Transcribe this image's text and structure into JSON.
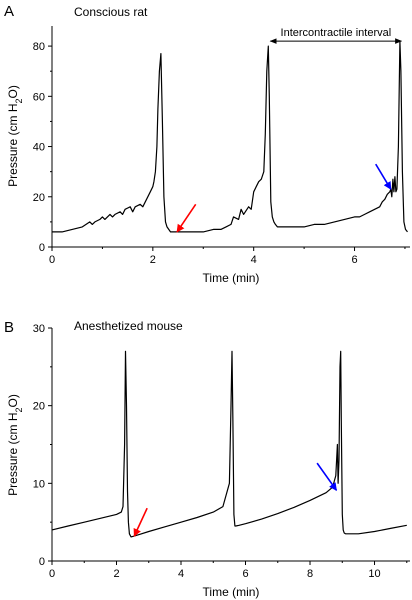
{
  "chart_data": [
    {
      "type": "line",
      "panel_label": "A",
      "title": "Conscious rat",
      "xlabel": "Time (min)",
      "ylabel": "Pressure (cm H2O)",
      "xlim": [
        0,
        7.1
      ],
      "ylim": [
        0,
        88
      ],
      "xticks": [
        0,
        2,
        4,
        6
      ],
      "yticks": [
        0,
        20,
        40,
        60,
        80
      ],
      "grid": false,
      "annotations": [
        {
          "text": "Intercontractile interval",
          "x1": 4.33,
          "x2": 6.93,
          "y": 82
        }
      ],
      "arrows": [
        {
          "color": "#ff0000",
          "tip": [
            2.48,
            6
          ],
          "tail": [
            2.85,
            17
          ]
        },
        {
          "color": "#0000ff",
          "tip": [
            6.72,
            23
          ],
          "tail": [
            6.42,
            33
          ]
        }
      ],
      "series": [
        {
          "x": [
            0,
            0.2,
            0.4,
            0.6,
            0.75,
            0.8,
            0.85,
            0.95,
            1.0,
            1.05,
            1.15,
            1.2,
            1.25,
            1.35,
            1.4,
            1.45,
            1.55,
            1.6,
            1.65,
            1.75,
            1.8,
            1.85,
            1.9,
            1.95,
            2.0,
            2.02,
            2.05,
            2.08,
            2.1,
            2.13,
            2.16,
            2.19,
            2.22,
            2.25,
            2.28,
            2.35,
            2.45,
            2.6,
            2.8,
            3.0,
            3.2,
            3.35,
            3.45,
            3.55,
            3.6,
            3.7,
            3.75,
            3.8,
            3.9,
            3.95,
            4.0,
            4.05,
            4.1,
            4.15,
            4.2,
            4.23,
            4.26,
            4.29,
            4.31,
            4.34,
            4.37,
            4.4,
            4.43,
            4.47,
            4.52,
            4.6,
            4.7,
            4.85,
            5.0,
            5.2,
            5.4,
            5.6,
            5.8,
            6.0,
            6.1,
            6.2,
            6.3,
            6.4,
            6.5,
            6.55,
            6.6,
            6.65,
            6.7,
            6.72,
            6.74,
            6.76,
            6.78,
            6.8,
            6.82,
            6.84,
            6.87,
            6.9,
            6.92,
            6.95,
            6.98,
            7.01,
            7.05
          ],
          "y": [
            6,
            6,
            7,
            8,
            10,
            9,
            10,
            11,
            12,
            11,
            13,
            12,
            13,
            14,
            13,
            15,
            16,
            14,
            16,
            17,
            16,
            18,
            20,
            22,
            24,
            26,
            30,
            40,
            55,
            70,
            77,
            50,
            20,
            10,
            8,
            6,
            6,
            6,
            6,
            6,
            7,
            7,
            8,
            9,
            12,
            11,
            15,
            13,
            16,
            15,
            22,
            24,
            26,
            27,
            30,
            45,
            70,
            80,
            60,
            18,
            12,
            10,
            9,
            8,
            8,
            8,
            8,
            8,
            8,
            9,
            9,
            10,
            11,
            12,
            12,
            13,
            14,
            15,
            16,
            18,
            19,
            21,
            22,
            23,
            20,
            27,
            22,
            28,
            22,
            23,
            40,
            82,
            70,
            30,
            10,
            7,
            6
          ]
        }
      ]
    },
    {
      "type": "line",
      "panel_label": "B",
      "title": "Anesthetized mouse",
      "xlabel": "Time (min)",
      "ylabel": "Pressure (cm H2O)",
      "xlim": [
        0,
        11.1
      ],
      "ylim": [
        0,
        30
      ],
      "xticks": [
        0,
        2,
        4,
        6,
        8,
        10
      ],
      "yticks": [
        0,
        10,
        20,
        30
      ],
      "grid": false,
      "arrows": [
        {
          "color": "#ff0000",
          "tip": [
            2.55,
            3.2
          ],
          "tail": [
            2.95,
            6.8
          ]
        },
        {
          "color": "#0000ff",
          "tip": [
            8.82,
            9.1
          ],
          "tail": [
            8.22,
            12.6
          ]
        }
      ],
      "series": [
        {
          "x": [
            0,
            0.5,
            1.0,
            1.5,
            2.0,
            2.15,
            2.2,
            2.25,
            2.28,
            2.31,
            2.34,
            2.37,
            2.4,
            2.45,
            2.55,
            2.7,
            3.0,
            3.5,
            4.0,
            4.5,
            5.0,
            5.3,
            5.5,
            5.55,
            5.58,
            5.61,
            5.64,
            5.67,
            5.7,
            5.8,
            6.0,
            6.5,
            7.0,
            7.5,
            8.0,
            8.5,
            8.7,
            8.8,
            8.85,
            8.87,
            8.9,
            8.93,
            8.95,
            8.97,
            9.0,
            9.03,
            9.06,
            9.1,
            9.2,
            9.5,
            10.0,
            10.5,
            11.0
          ],
          "y": [
            4,
            4.5,
            5.0,
            5.5,
            6.0,
            6.3,
            7,
            15,
            27,
            20,
            9,
            5,
            3.5,
            3.1,
            3.2,
            3.4,
            3.8,
            4.4,
            5.0,
            5.6,
            6.3,
            7,
            10,
            20,
            27,
            18,
            6,
            4.5,
            4.5,
            4.6,
            4.8,
            5.4,
            6.1,
            6.9,
            7.8,
            8.8,
            9.5,
            11,
            15,
            10,
            13,
            25,
            27,
            18,
            6,
            4,
            3.6,
            3.5,
            3.5,
            3.5,
            3.8,
            4.2,
            4.6
          ]
        }
      ]
    }
  ]
}
